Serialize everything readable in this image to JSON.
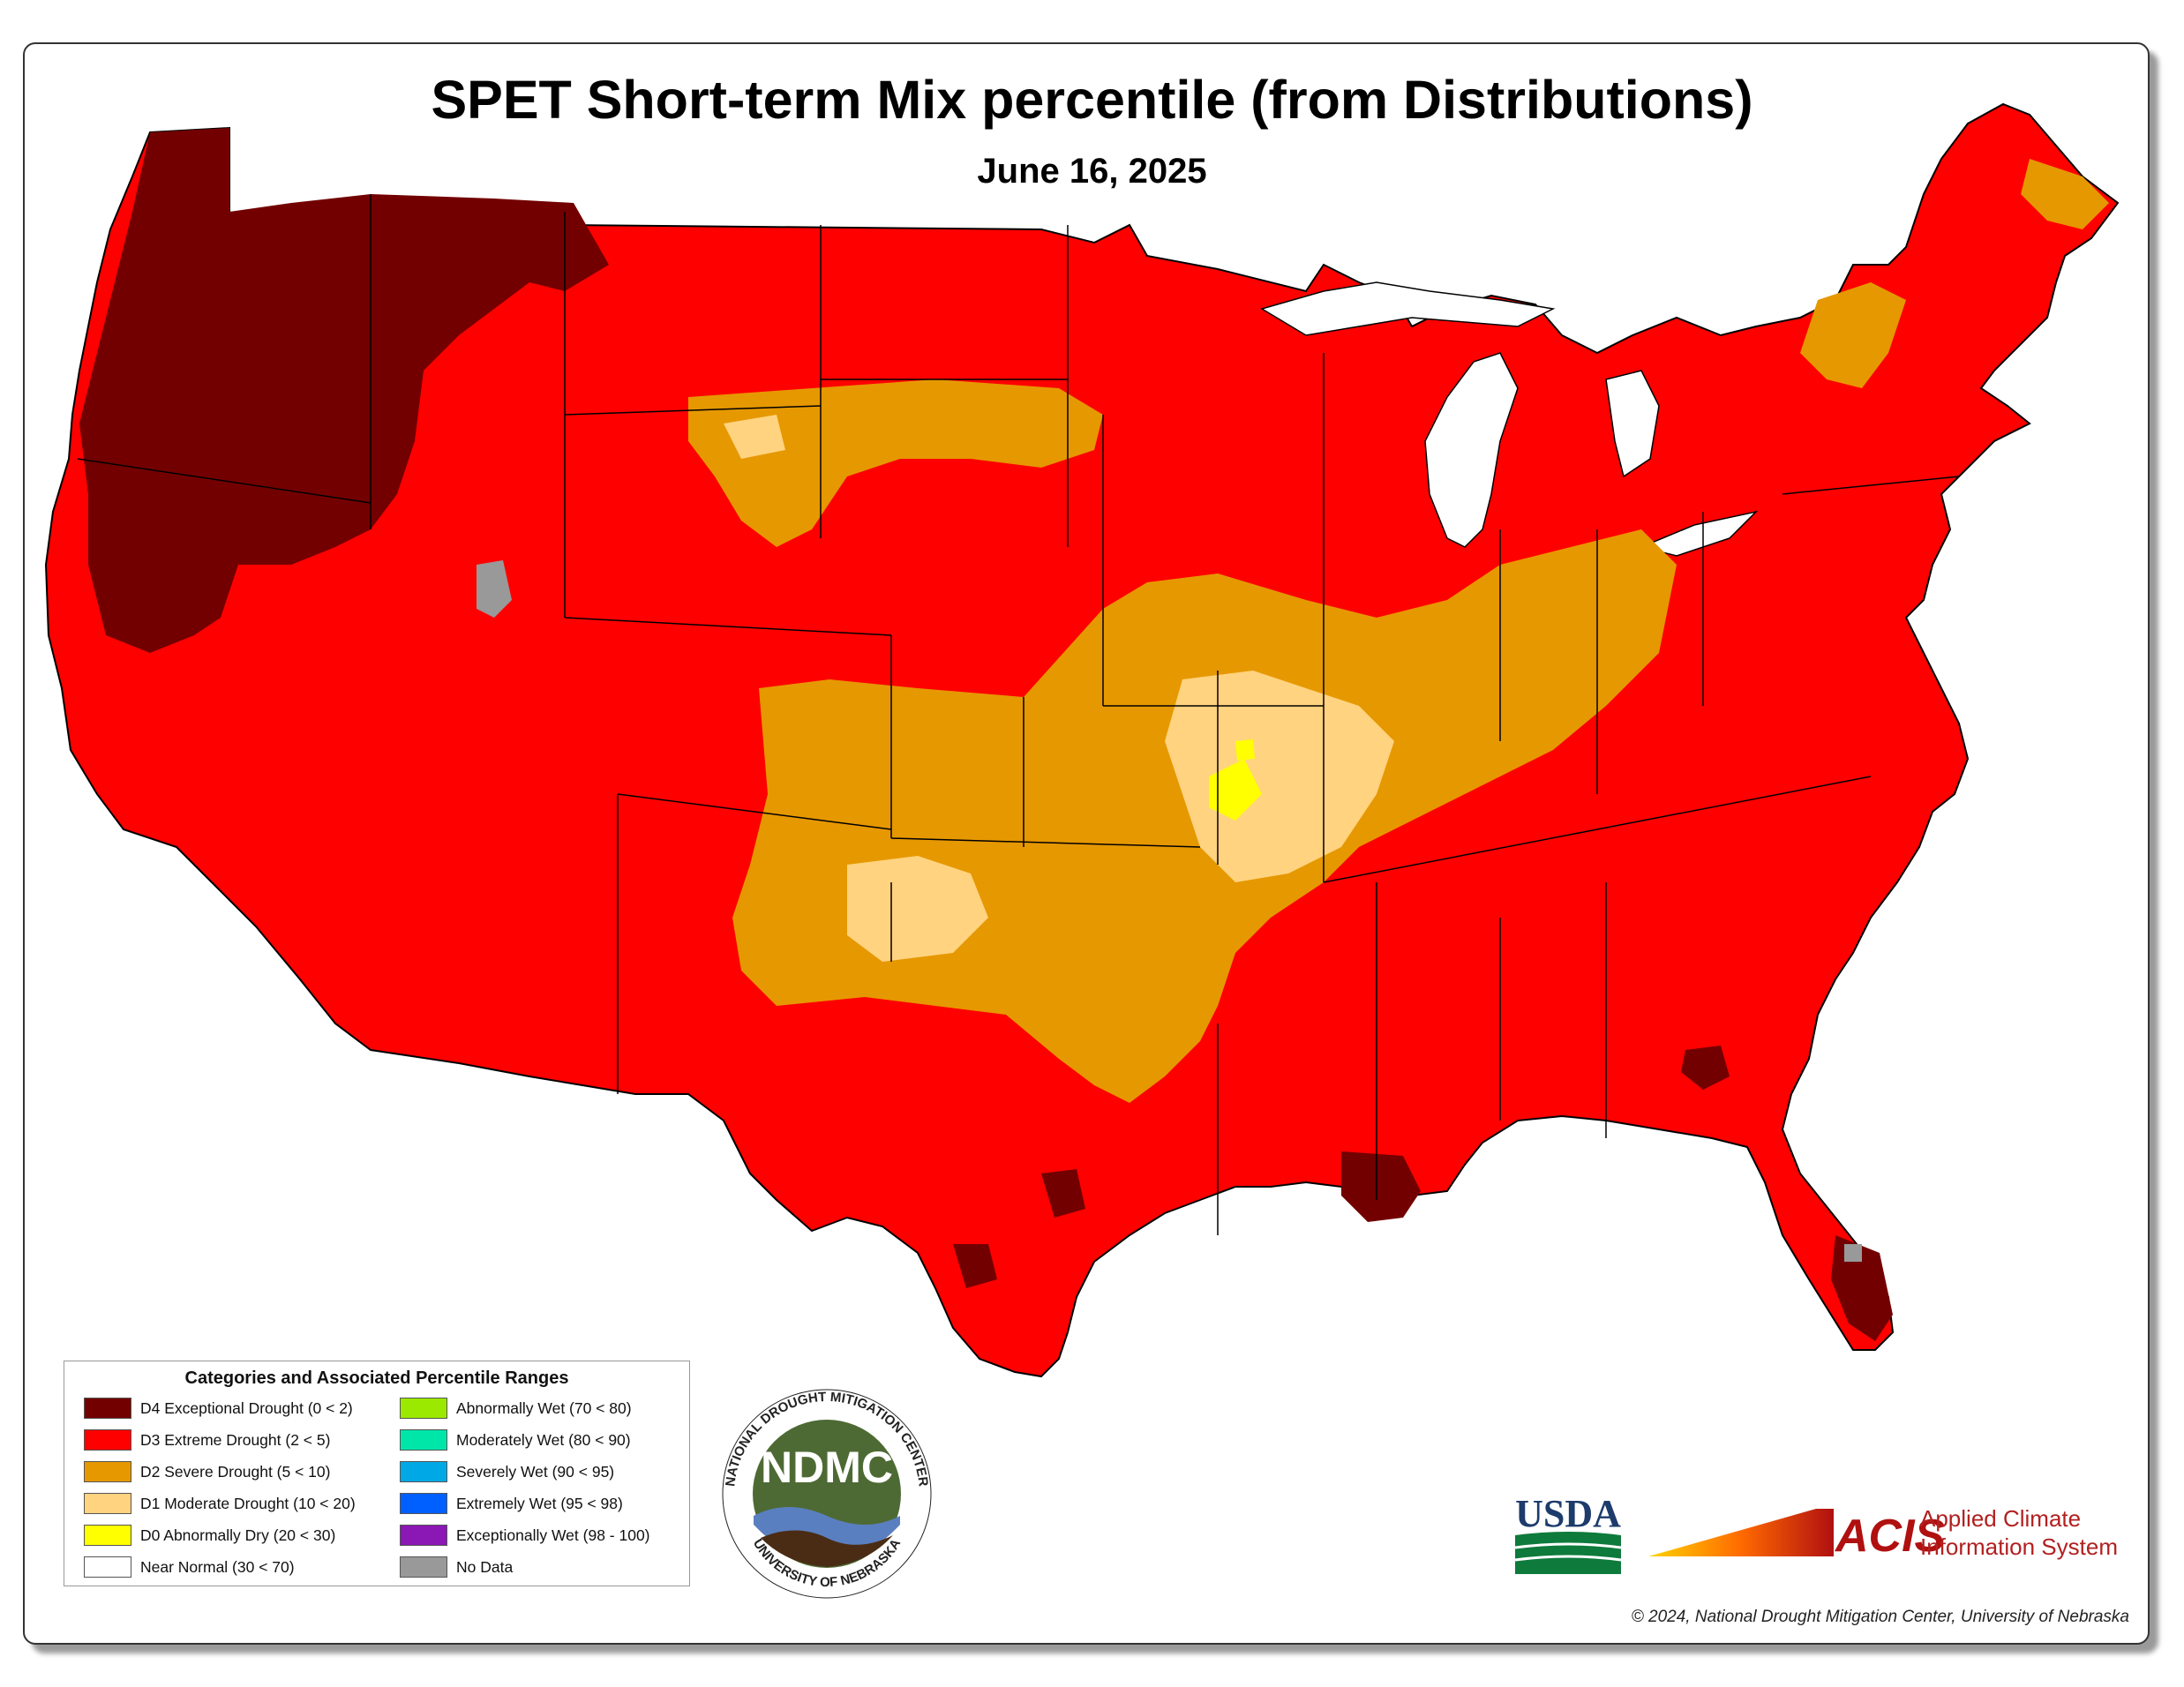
{
  "title": "SPET Short-term Mix percentile (from Distributions)",
  "subtitle": "June 16, 2025",
  "legend": {
    "title": "Categories and Associated Percentile Ranges",
    "items": [
      {
        "label": "D4 Exceptional Drought (0 < 2)",
        "color": "#730000"
      },
      {
        "label": "D3 Extreme Drought (2 < 5)",
        "color": "#ff0000"
      },
      {
        "label": "D2 Severe Drought (5 < 10)",
        "color": "#e69800"
      },
      {
        "label": "D1 Moderate Drought (10 < 20)",
        "color": "#ffd37f"
      },
      {
        "label": "D0 Abnormally Dry (20 < 30)",
        "color": "#ffff00"
      },
      {
        "label": "Near Normal (30 < 70)",
        "color": "#ffffff"
      },
      {
        "label": "Abnormally Wet (70 < 80)",
        "color": "#9be800"
      },
      {
        "label": "Moderately Wet (80 < 90)",
        "color": "#00e6a9"
      },
      {
        "label": "Severely Wet (90 < 95)",
        "color": "#00a9e6"
      },
      {
        "label": "Extremely Wet (95 < 98)",
        "color": "#0060ff"
      },
      {
        "label": "Exceptionally Wet (98 - 100)",
        "color": "#8b17b5"
      },
      {
        "label": "No Data",
        "color": "#999999"
      }
    ]
  },
  "logos": {
    "ndmc": {
      "center_text": "NDMC",
      "top_text": "NATIONAL DROUGHT MITIGATION CENTER",
      "bottom_text": "UNIVERSITY OF NEBRASKA"
    },
    "usda": {
      "text": "USDA"
    },
    "acis": {
      "abbr": "ACIS",
      "line1": "Applied Climate",
      "line2": "Information System"
    }
  },
  "copyright": "© 2024, National Drought Mitigation Center, University of Nebraska"
}
